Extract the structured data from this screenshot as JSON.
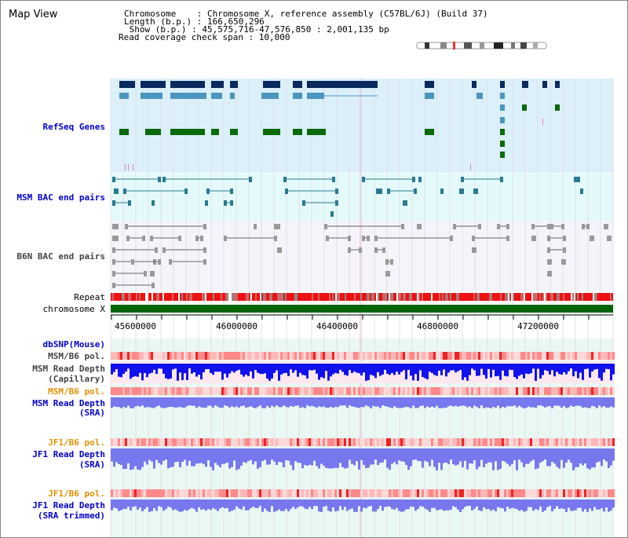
{
  "title": "Map View",
  "info": {
    "chromosome": "Chromosome    : Chromosome X, reference assembly (C57BL/6J) (Build 37)",
    "length": "Length (b.p.) : 166,650,296",
    "show": " Show (b.p.) : 45,575,716-47,576,850 : 2,001,135 bp",
    "coverage": "Read coverage check span : 10,000"
  },
  "tracks": {
    "refseq": "RefSeq Genes",
    "msm_bac": "MSM BAC end pairs",
    "b6n_bac": "B6N BAC end pairs",
    "repeat": "Repeat",
    "chromosome": "chromosome X",
    "dbsnp": "dbSNP(Mouse)",
    "msm_b6_pol_1": "MSM/B6 pol.",
    "msm_depth_cap_1": "MSM Read Depth",
    "msm_depth_cap_2": "(Capillary)",
    "msm_b6_pol_2": "MSM/B6 pol.",
    "msm_depth_sra_1": "MSM Read Depth",
    "msm_depth_sra_2": "(SRA)",
    "jf1_b6_pol_1": "JF1/B6 pol.",
    "jf1_depth_sra_1": "JF1 Read Depth",
    "jf1_depth_sra_2": "(SRA)",
    "jf1_b6_pol_2": "JF1/B6 pol.",
    "jf1_depth_trim_1": "JF1 Read Depth",
    "jf1_depth_trim_2": "(SRA trimmed)"
  },
  "axis_ticks": [
    "45600000",
    "46000000",
    "46400000",
    "46800000",
    "47200000"
  ],
  "colors": {
    "refseq_bg": "#dcf0fa",
    "bac_bg": "#e4fafa",
    "b6n_bg": "#f4f4fa",
    "gene_dark": "#0a2a5e",
    "gene_mid": "#4a96c0",
    "gene_green": "#0a6a0a",
    "chrom": "#006600",
    "repeat_red": "#ee1111",
    "depth_dark": "#1111ee",
    "depth_light": "#7777ee",
    "pol_pink": "#ffb0b0"
  }
}
